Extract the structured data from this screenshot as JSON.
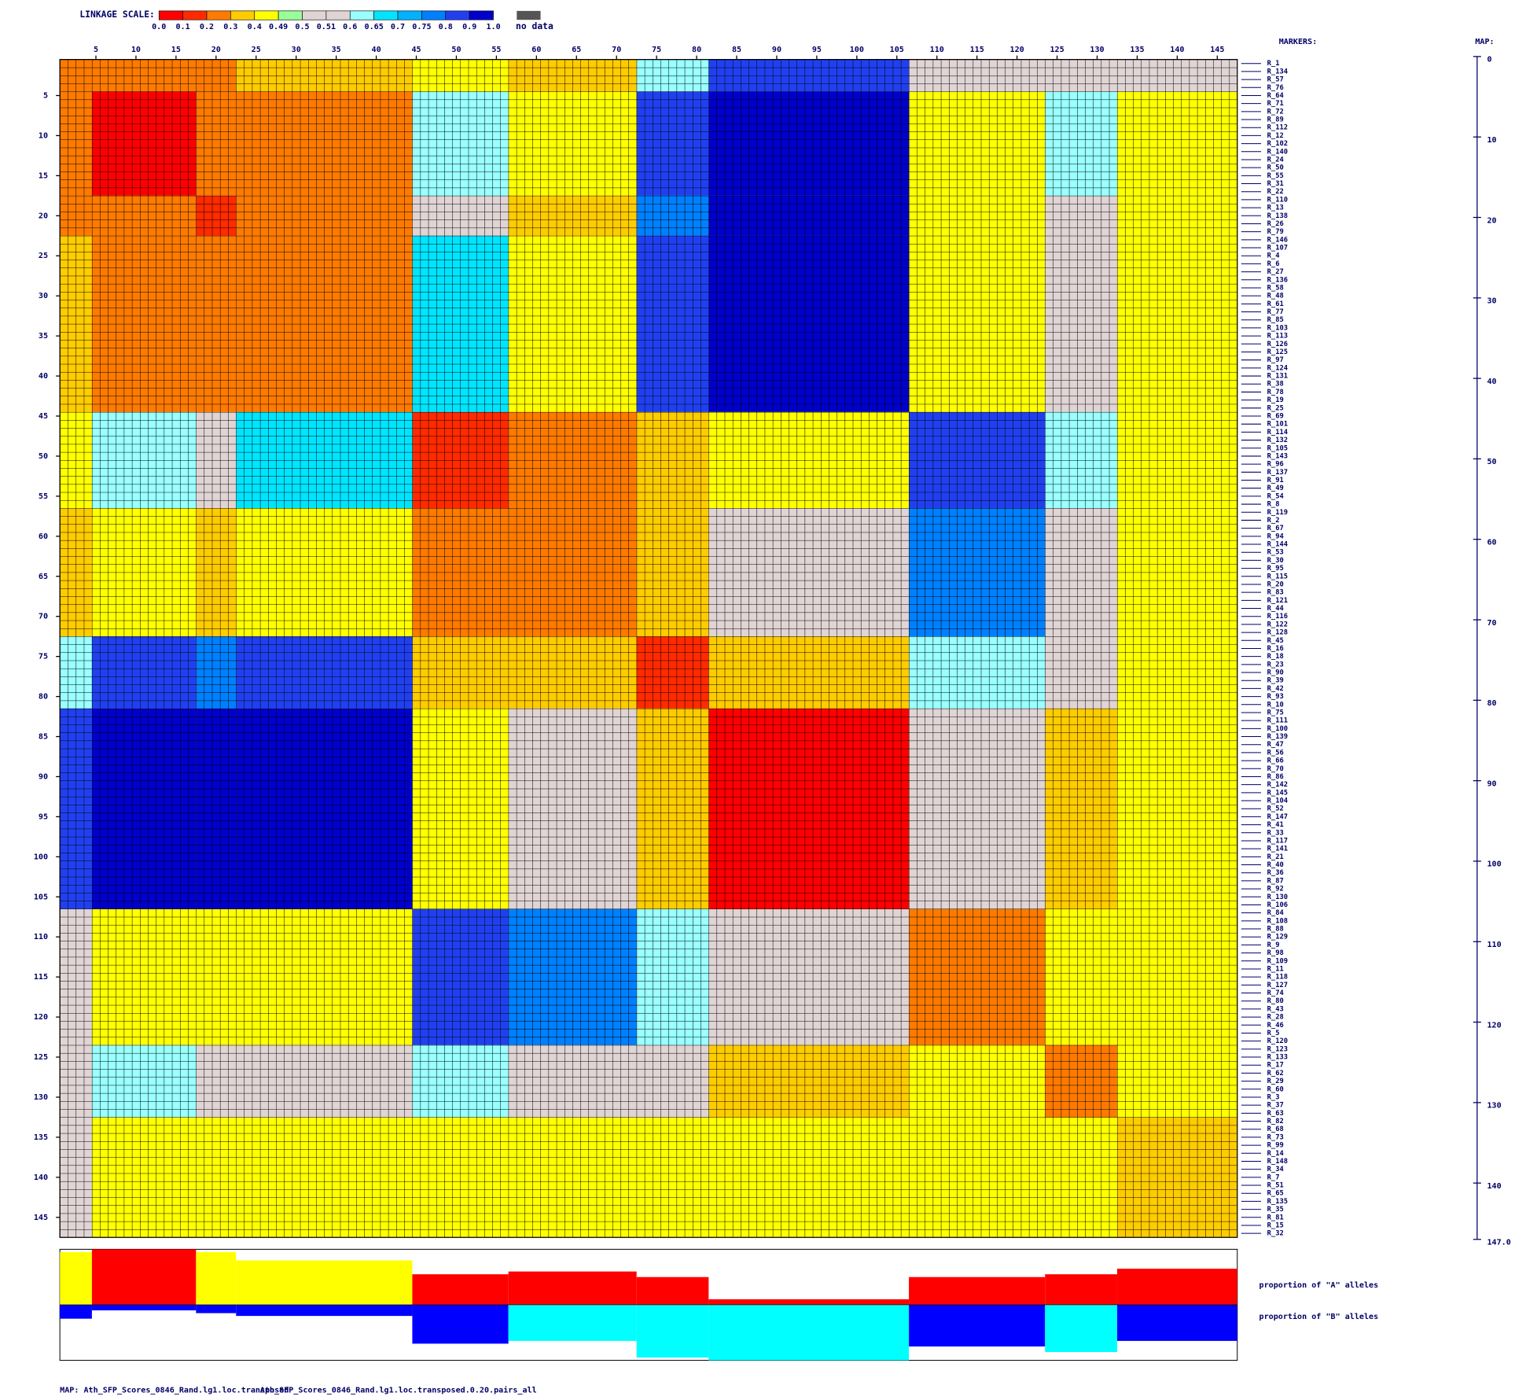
{
  "chart_data": {
    "type": "heatmap",
    "title": "LINKAGE SCALE:",
    "scale": {
      "ticks": [
        {
          "value": 0,
          "label": "0.0"
        },
        0.1,
        0.2,
        0.3,
        0.4,
        0.49,
        0.5,
        0.51,
        0.6,
        0.65,
        0.7,
        0.75,
        0.8,
        0.9,
        {
          "value": 1,
          "label": "1.0"
        }
      ],
      "colors": [
        "#ff0000",
        "#ff2a00",
        "#ff7a00",
        "#ffcc00",
        "#ffff00",
        "#99ff99",
        "#e0d4d4",
        "#e0d4d4",
        "#99ffff",
        "#00e5ff",
        "#00b2ff",
        "#0080ff",
        "#2040f0",
        "#0000cc"
      ]
    },
    "no_data_label": "no data",
    "no_data_color": "#555555",
    "markers_label": "MARKERS:",
    "map_label": "MAP:",
    "markers": [
      "R_1",
      "R_134",
      "R_57",
      "R_76",
      "R_64",
      "R_71",
      "R_72",
      "R_89",
      "R_112",
      "R_12",
      "R_102",
      "R_140",
      "R_24",
      "R_50",
      "R_55",
      "R_31",
      "R_22",
      "R_110",
      "R_13",
      "R_138",
      "R_26",
      "R_79",
      "R_146",
      "R_107",
      "R_4",
      "R_6",
      "R_27",
      "R_136",
      "R_58",
      "R_48",
      "R_61",
      "R_77",
      "R_85",
      "R_103",
      "R_113",
      "R_126",
      "R_125",
      "R_97",
      "R_124",
      "R_131",
      "R_38",
      "R_78",
      "R_19",
      "R_25",
      "R_69",
      "R_101",
      "R_114",
      "R_132",
      "R_105",
      "R_143",
      "R_96",
      "R_137",
      "R_91",
      "R_49",
      "R_54",
      "R_8",
      "R_119",
      "R_2",
      "R_67",
      "R_94",
      "R_144",
      "R_53",
      "R_30",
      "R_95",
      "R_115",
      "R_20",
      "R_83",
      "R_121",
      "R_44",
      "R_116",
      "R_122",
      "R_128",
      "R_45",
      "R_16",
      "R_18",
      "R_23",
      "R_90",
      "R_39",
      "R_42",
      "R_93",
      "R_10",
      "R_75",
      "R_111",
      "R_100",
      "R_139",
      "R_47",
      "R_56",
      "R_66",
      "R_70",
      "R_86",
      "R_142",
      "R_145",
      "R_104",
      "R_52",
      "R_147",
      "R_41",
      "R_33",
      "R_117",
      "R_141",
      "R_21",
      "R_40",
      "R_36",
      "R_87",
      "R_92",
      "R_130",
      "R_106",
      "R_84",
      "R_108",
      "R_88",
      "R_129",
      "R_9",
      "R_98",
      "R_109",
      "R_11",
      "R_118",
      "R_127",
      "R_74",
      "R_80",
      "R_43",
      "R_28",
      "R_46",
      "R_5",
      "R_120",
      "R_123",
      "R_133",
      "R_17",
      "R_62",
      "R_29",
      "R_60",
      "R_3",
      "R_37",
      "R_63",
      "R_82",
      "R_68",
      "R_73",
      "R_99",
      "R_14",
      "R_148",
      "R_34",
      "R_7",
      "R_51",
      "R_65",
      "R_135",
      "R_35",
      "R_81",
      "R_15",
      "R_32"
    ],
    "bins": [
      0,
      4,
      17,
      22,
      44,
      56,
      72,
      81,
      106,
      123,
      132,
      147
    ],
    "values": [
      [
        0.2,
        0.2,
        0.2,
        0.3,
        0.45,
        0.35,
        0.6,
        0.85,
        0.5,
        0.55,
        0.5
      ],
      [
        0.2,
        0.05,
        0.2,
        0.25,
        0.6,
        0.4,
        0.8,
        0.95,
        0.45,
        0.6,
        0.45
      ],
      [
        0.2,
        0.2,
        0.1,
        0.25,
        0.55,
        0.35,
        0.75,
        0.9,
        0.4,
        0.55,
        0.4
      ],
      [
        0.3,
        0.25,
        0.25,
        0.2,
        0.65,
        0.4,
        0.8,
        0.9,
        0.4,
        0.55,
        0.4
      ],
      [
        0.45,
        0.6,
        0.55,
        0.65,
        0.1,
        0.25,
        0.3,
        0.4,
        0.8,
        0.6,
        0.45
      ],
      [
        0.35,
        0.4,
        0.35,
        0.4,
        0.25,
        0.2,
        0.3,
        0.55,
        0.75,
        0.5,
        0.45
      ],
      [
        0.6,
        0.8,
        0.75,
        0.8,
        0.3,
        0.3,
        0.15,
        0.35,
        0.6,
        0.55,
        0.45
      ],
      [
        0.85,
        0.95,
        0.9,
        0.9,
        0.4,
        0.55,
        0.35,
        0.05,
        0.5,
        0.35,
        0.4
      ],
      [
        0.5,
        0.45,
        0.4,
        0.4,
        0.8,
        0.75,
        0.6,
        0.5,
        0.2,
        0.4,
        0.45
      ],
      [
        0.55,
        0.6,
        0.55,
        0.55,
        0.6,
        0.5,
        0.55,
        0.35,
        0.4,
        0.2,
        0.45
      ],
      [
        0.5,
        0.45,
        0.4,
        0.4,
        0.45,
        0.45,
        0.45,
        0.4,
        0.45,
        0.45,
        0.35
      ]
    ],
    "xlim": [
      0,
      147
    ],
    "xticks": [
      5,
      10,
      15,
      20,
      25,
      30,
      35,
      40,
      45,
      50,
      55,
      60,
      65,
      70,
      75,
      80,
      85,
      90,
      95,
      100,
      105,
      110,
      115,
      120,
      125,
      130,
      135,
      140,
      145
    ],
    "yticks": [
      5,
      10,
      15,
      20,
      25,
      30,
      35,
      40,
      45,
      50,
      55,
      60,
      65,
      70,
      75,
      80,
      85,
      90,
      95,
      100,
      105,
      110,
      115,
      120,
      125,
      130,
      135,
      140,
      145
    ],
    "map_lim": [
      0,
      147
    ],
    "map_ticks": [
      0,
      10,
      20,
      30,
      40,
      50,
      60,
      70,
      80,
      90,
      100,
      110,
      120,
      130,
      140,
      {
        "value": 147,
        "label": "147.0"
      }
    ],
    "proportions": {
      "type": "bar",
      "series": [
        {
          "name": "proportion of \"A\" alleles",
          "values": [
            0.95,
            1.0,
            0.95,
            0.8,
            0.55,
            0.6,
            0.5,
            0.1,
            0.5,
            0.55,
            0.65
          ],
          "colors": [
            "#ffff00",
            "#ff0000",
            "#ffff00",
            "#ffff00",
            "#ff0000",
            "#ff0000",
            "#ff0000",
            "#ff0000",
            "#ff0000",
            "#ff0000",
            "#ff0000"
          ]
        },
        {
          "name": "proportion of \"B\" alleles",
          "values": [
            0.25,
            0.1,
            0.15,
            0.2,
            0.7,
            0.65,
            0.95,
            1.0,
            0.75,
            0.85,
            0.65
          ],
          "colors": [
            "#0000ff",
            "#0000ff",
            "#0000ff",
            "#0000ff",
            "#0000ff",
            "#00ffff",
            "#00ffff",
            "#00ffff",
            "#0000ff",
            "#00ffff",
            "#0000ff"
          ]
        }
      ]
    },
    "footer": [
      "MAP: Ath_SFP_Scores_0846_Rand.lg1.loc.transposed",
      "Ath_SFP_Scores_0846_Rand.lg1.loc.transposed.0.20.pairs_all"
    ]
  }
}
